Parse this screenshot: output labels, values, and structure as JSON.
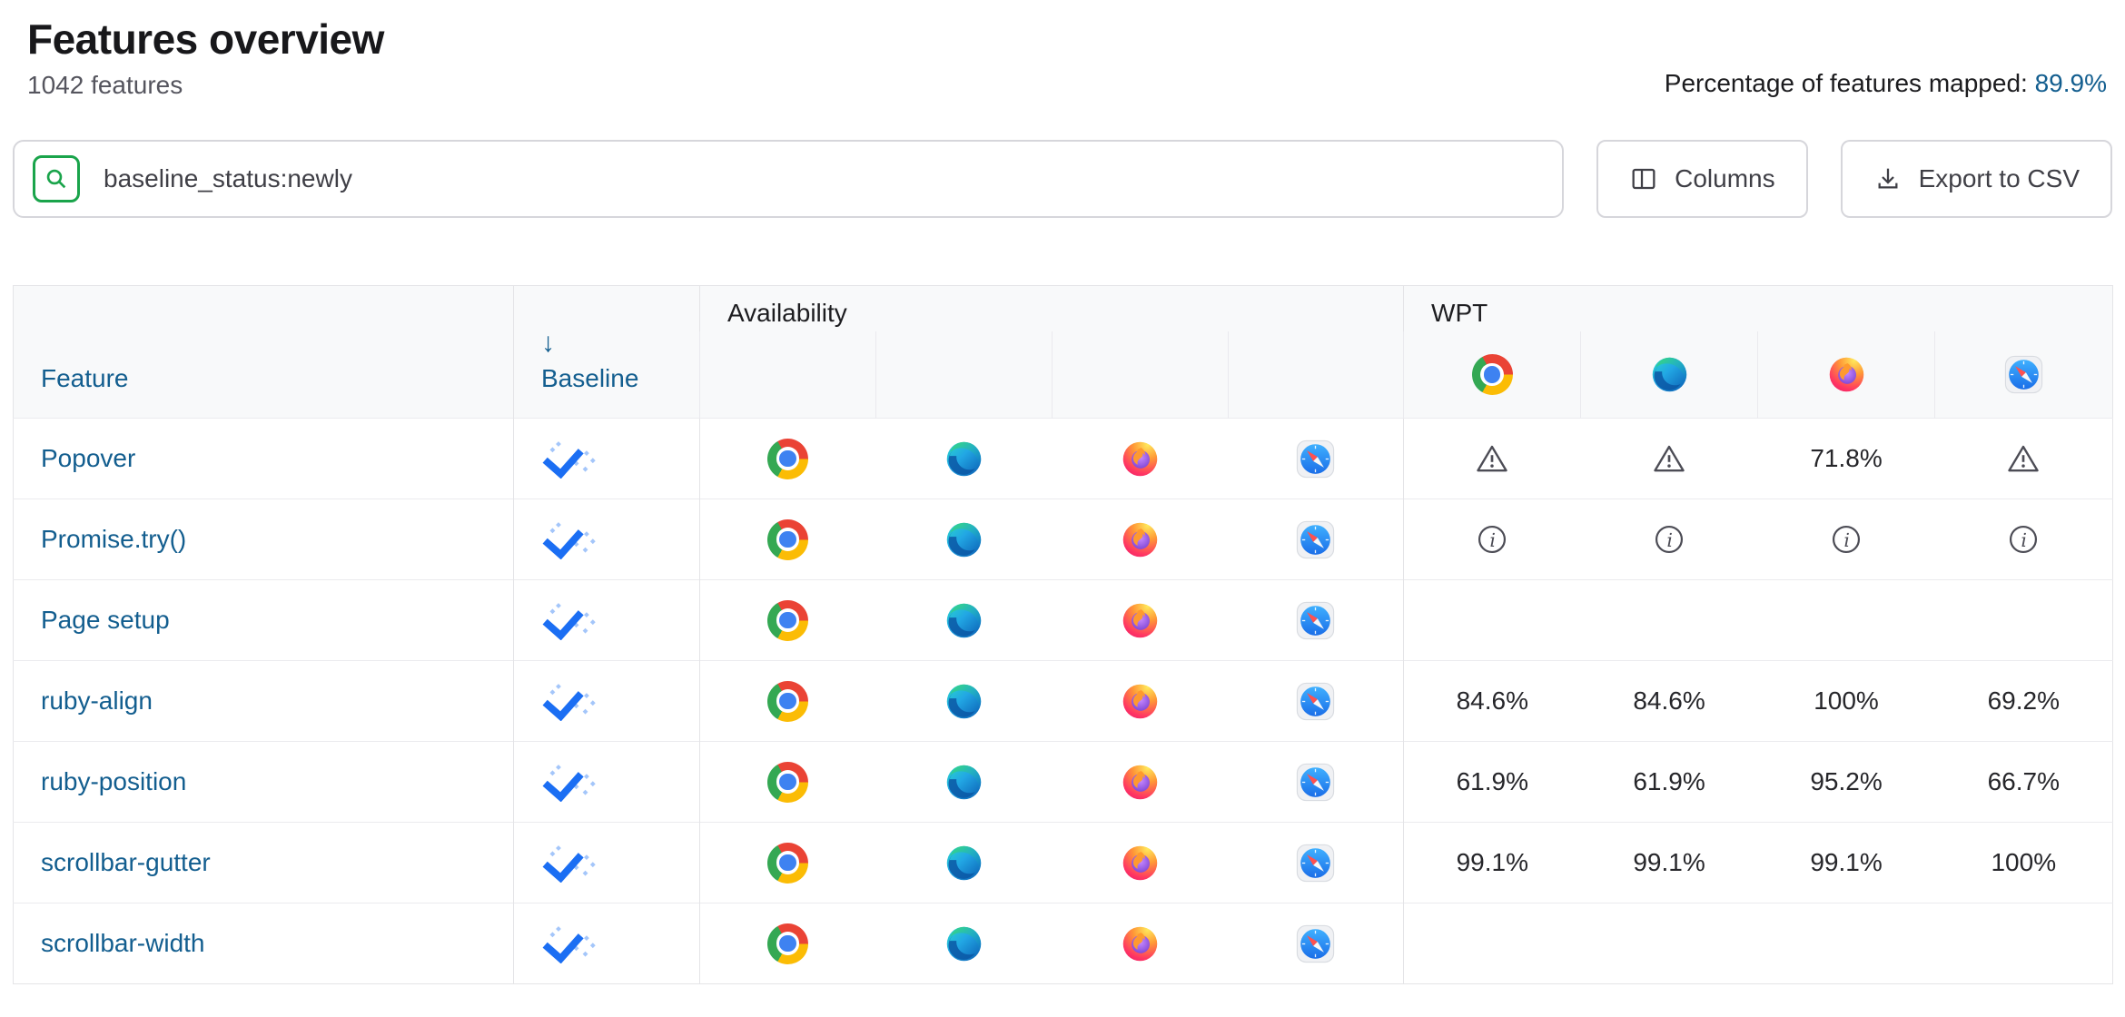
{
  "header": {
    "title": "Features overview",
    "subtitle": "1042 features",
    "mapped_label": "Percentage of features mapped:",
    "mapped_value": "89.9%"
  },
  "toolbar": {
    "search_value": "baseline_status:newly",
    "columns_label": "Columns",
    "export_label": "Export to CSV"
  },
  "table": {
    "columns": {
      "feature": "Feature",
      "baseline": "Baseline",
      "baseline_sort_arrow": "↓",
      "availability": "Availability",
      "wpt": "WPT"
    },
    "browsers": [
      "chrome",
      "edge",
      "firefox",
      "safari"
    ],
    "rows": [
      {
        "feature": "Popover",
        "baseline": "newly",
        "availability": [
          "chrome",
          "edge",
          "firefox",
          "safari"
        ],
        "wpt": [
          {
            "kind": "warning"
          },
          {
            "kind": "warning"
          },
          {
            "kind": "value",
            "value": "71.8%"
          },
          {
            "kind": "warning"
          }
        ]
      },
      {
        "feature": "Promise.try()",
        "baseline": "newly",
        "availability": [
          "chrome",
          "edge",
          "firefox",
          "safari"
        ],
        "wpt": [
          {
            "kind": "info"
          },
          {
            "kind": "info"
          },
          {
            "kind": "info"
          },
          {
            "kind": "info"
          }
        ]
      },
      {
        "feature": "Page setup",
        "baseline": "newly",
        "availability": [
          "chrome",
          "edge",
          "firefox",
          "safari"
        ],
        "wpt": [
          {
            "kind": "empty"
          },
          {
            "kind": "empty"
          },
          {
            "kind": "empty"
          },
          {
            "kind": "empty"
          }
        ]
      },
      {
        "feature": "ruby-align",
        "baseline": "newly",
        "availability": [
          "chrome",
          "edge",
          "firefox",
          "safari"
        ],
        "wpt": [
          {
            "kind": "value",
            "value": "84.6%"
          },
          {
            "kind": "value",
            "value": "84.6%"
          },
          {
            "kind": "value",
            "value": "100%"
          },
          {
            "kind": "value",
            "value": "69.2%"
          }
        ]
      },
      {
        "feature": "ruby-position",
        "baseline": "newly",
        "availability": [
          "chrome",
          "edge",
          "firefox",
          "safari"
        ],
        "wpt": [
          {
            "kind": "value",
            "value": "61.9%"
          },
          {
            "kind": "value",
            "value": "61.9%"
          },
          {
            "kind": "value",
            "value": "95.2%"
          },
          {
            "kind": "value",
            "value": "66.7%"
          }
        ]
      },
      {
        "feature": "scrollbar-gutter",
        "baseline": "newly",
        "availability": [
          "chrome",
          "edge",
          "firefox",
          "safari"
        ],
        "wpt": [
          {
            "kind": "value",
            "value": "99.1%"
          },
          {
            "kind": "value",
            "value": "99.1%"
          },
          {
            "kind": "value",
            "value": "99.1%"
          },
          {
            "kind": "value",
            "value": "100%"
          }
        ]
      },
      {
        "feature": "scrollbar-width",
        "baseline": "newly",
        "availability": [
          "chrome",
          "edge",
          "firefox",
          "safari"
        ],
        "wpt": [
          {
            "kind": "empty"
          },
          {
            "kind": "empty"
          },
          {
            "kind": "empty"
          },
          {
            "kind": "empty"
          }
        ]
      }
    ]
  },
  "colors": {
    "link_blue": "#135e8f",
    "search_green": "#1aa44b",
    "baseline_check_blue": "#1b6ef3",
    "baseline_dot_blue": "#a4c6fa",
    "icon_gray": "#4c4c55",
    "header_bg": "#f8f9fa",
    "border_gray": "#e4e4e7"
  }
}
